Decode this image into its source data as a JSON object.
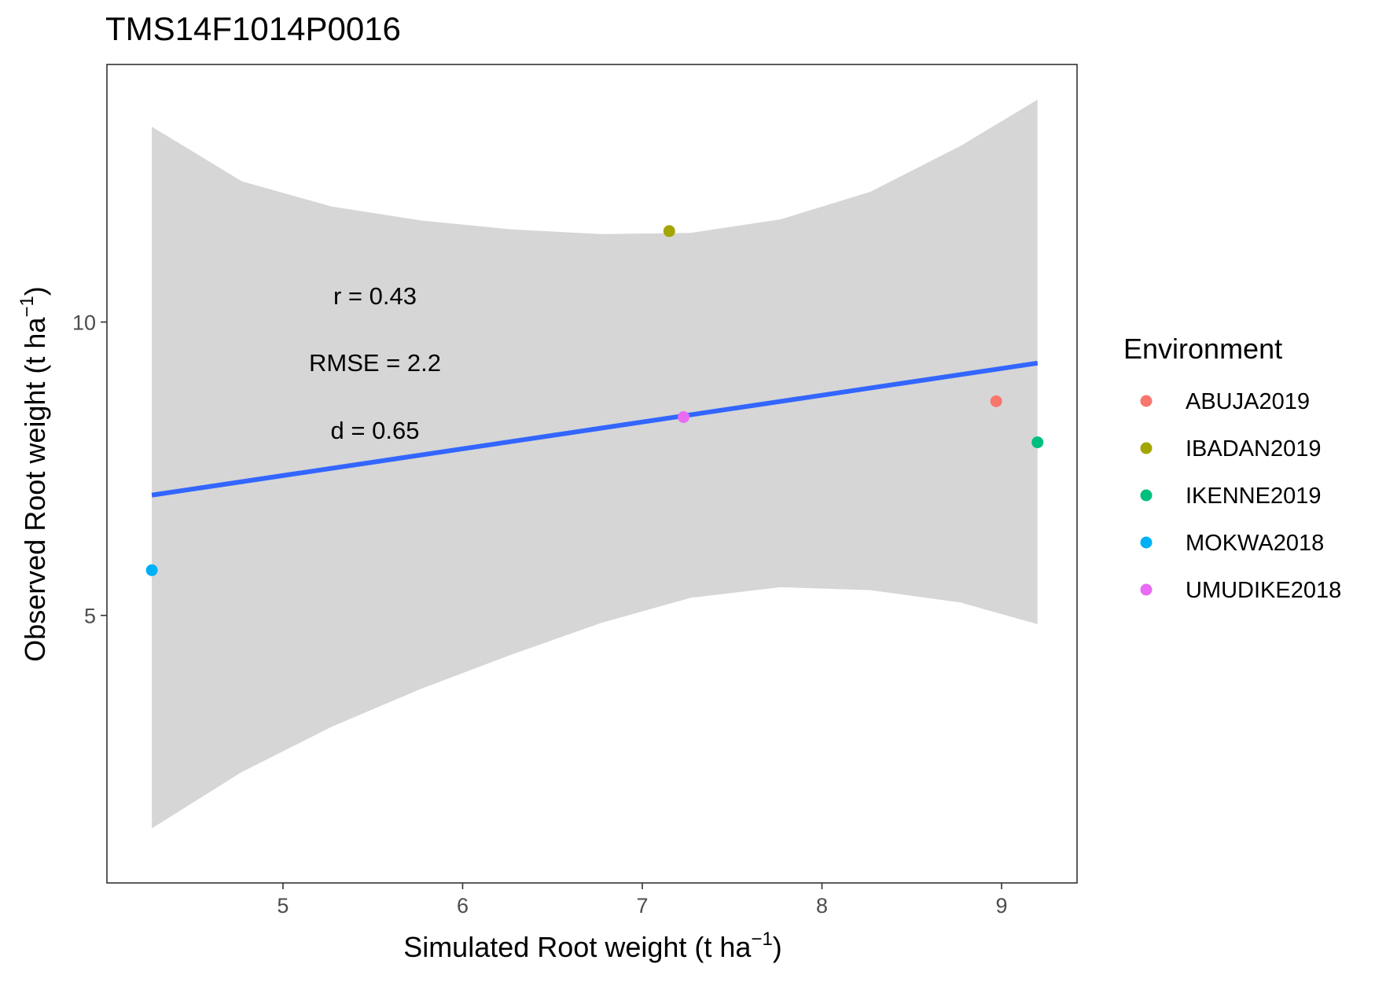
{
  "chart_data": {
    "type": "scatter",
    "title": "TMS14F1014P0016",
    "xlabel": "Simulated Root weight (t ha",
    "xlabel_sup": "−1",
    "xlabel_close": ")",
    "ylabel": "Observed Root weight (t ha",
    "ylabel_sup": "−1",
    "ylabel_close": ")",
    "xlim": [
      4.02,
      9.42
    ],
    "ylim": [
      0.44,
      14.39
    ],
    "x_ticks": [
      5,
      6,
      7,
      8,
      9
    ],
    "y_ticks": [
      5,
      10
    ],
    "grid": false,
    "legend": {
      "title": "Environment",
      "placement": "right"
    },
    "series": [
      {
        "name": "ABUJA2019",
        "color": "#F8766D",
        "x": 8.97,
        "y": 8.65
      },
      {
        "name": "IBADAN2019",
        "color": "#A3A500",
        "x": 7.15,
        "y": 11.55
      },
      {
        "name": "IKENNE2019",
        "color": "#00BF7D",
        "x": 9.2,
        "y": 7.95
      },
      {
        "name": "MOKWA2018",
        "color": "#00B0F6",
        "x": 4.27,
        "y": 5.77
      },
      {
        "name": "UMUDIKE2018",
        "color": "#E76BF3",
        "x": 7.23,
        "y": 8.38
      }
    ],
    "fit": {
      "type": "linear",
      "color": "#3366FF",
      "x": [
        4.27,
        9.2
      ],
      "y": [
        7.05,
        9.3
      ]
    },
    "confidence_band": {
      "color": "#D6D6D6",
      "x": [
        4.27,
        4.77,
        5.27,
        5.77,
        6.27,
        6.77,
        7.27,
        7.77,
        8.27,
        8.77,
        9.2
      ],
      "lower": [
        1.37,
        2.33,
        3.1,
        3.75,
        4.33,
        4.87,
        5.3,
        5.48,
        5.43,
        5.22,
        4.85
      ],
      "upper": [
        13.33,
        12.4,
        11.97,
        11.73,
        11.58,
        11.5,
        11.52,
        11.75,
        12.22,
        13.0,
        13.79
      ]
    },
    "annotations": [
      "r = 0.43",
      "RMSE = 2.2",
      "d = 0.65"
    ]
  }
}
